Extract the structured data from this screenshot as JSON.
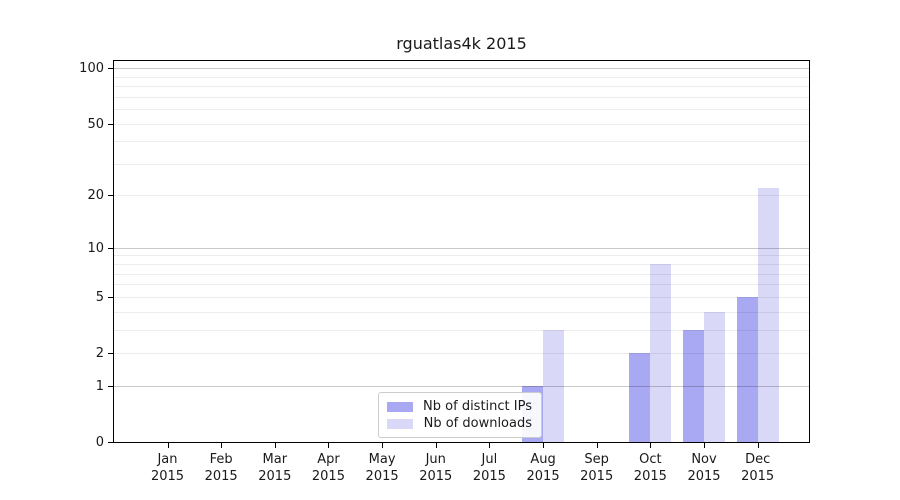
{
  "chart_data": {
    "type": "bar",
    "title": "rguatlas4k 2015",
    "x_categories": [
      {
        "month": "Jan",
        "year": "2015"
      },
      {
        "month": "Feb",
        "year": "2015"
      },
      {
        "month": "Mar",
        "year": "2015"
      },
      {
        "month": "Apr",
        "year": "2015"
      },
      {
        "month": "May",
        "year": "2015"
      },
      {
        "month": "Jun",
        "year": "2015"
      },
      {
        "month": "Jul",
        "year": "2015"
      },
      {
        "month": "Aug",
        "year": "2015"
      },
      {
        "month": "Sep",
        "year": "2015"
      },
      {
        "month": "Oct",
        "year": "2015"
      },
      {
        "month": "Nov",
        "year": "2015"
      },
      {
        "month": "Dec",
        "year": "2015"
      }
    ],
    "series": [
      {
        "name": "Nb of distinct IPs",
        "color": "#a9a9f3",
        "values": [
          0,
          0,
          0,
          0,
          0,
          0,
          0,
          1,
          0,
          2,
          3,
          5
        ]
      },
      {
        "name": "Nb of downloads",
        "color": "#d9d9f7",
        "values": [
          0,
          0,
          0,
          0,
          0,
          0,
          0,
          3,
          0,
          8,
          4,
          22
        ]
      }
    ],
    "y_axis": {
      "scale": "log1p",
      "tick_values": [
        0,
        1,
        2,
        5,
        10,
        20,
        50,
        100
      ],
      "major_grid_values": [
        1,
        10,
        100
      ],
      "minor_grid_values": [
        2,
        3,
        4,
        5,
        6,
        7,
        8,
        9,
        20,
        30,
        40,
        50,
        60,
        70,
        80,
        90
      ],
      "ylim": [
        0,
        100
      ],
      "grid": true
    },
    "legend": {
      "entries": [
        "Nb of distinct IPs",
        "Nb of downloads"
      ],
      "position": "lower-center"
    }
  },
  "colors": {
    "background": "#ffffff",
    "frame": "#000000",
    "text": "#1a1a1a",
    "major_grid": "#c9c9c9",
    "minor_grid": "#ebebeb",
    "legend_border": "#cccccc",
    "bar_distinct_ips": "#a9a9f3",
    "bar_downloads": "#d9d9f7"
  }
}
